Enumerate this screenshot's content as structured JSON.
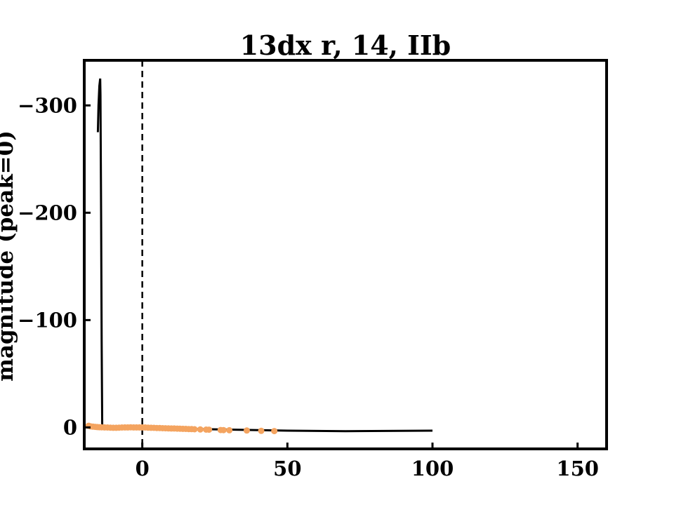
{
  "chart_data": {
    "type": "line",
    "title": "13dx r, 14, IIb",
    "xlabel": "",
    "ylabel": "magnitude (peak=0)",
    "xlim": [
      -20,
      160
    ],
    "ylim": [
      20,
      -342
    ],
    "y_inverted": true,
    "xticks": [
      0,
      50,
      100,
      150
    ],
    "yticks": [
      -300,
      -200,
      -100,
      0
    ],
    "xtick_labels": [
      "0",
      "50",
      "100",
      "150"
    ],
    "ytick_labels": [
      "−300",
      "−200",
      "−100",
      "0"
    ],
    "grid": false,
    "peak_marker_x": 0,
    "colors": {
      "model": "#000000",
      "observed": "#f4a460",
      "peak_marker": "#000000"
    },
    "series": [
      {
        "kind": "line",
        "x": [
          -15.3,
          -15.1,
          -14.8,
          -14.5,
          -14.4,
          -14.2,
          -14.0,
          -13.8,
          -12,
          -10,
          -5,
          0,
          10,
          20,
          30,
          50,
          70,
          100
        ],
        "y": [
          -275,
          -300,
          -318,
          -325,
          -310,
          -200,
          -80,
          -0.5,
          -0.3,
          0,
          0.2,
          0.5,
          1.0,
          1.5,
          2.0,
          3.0,
          3.5,
          3.0
        ]
      },
      {
        "kind": "scatter",
        "x": [
          -18.5,
          -17.8,
          -17,
          -16.2,
          -15.5,
          -14.8,
          -14,
          -13,
          -12,
          -11,
          -10,
          -9,
          -8,
          -7,
          -6,
          -5,
          -4,
          -3,
          -2,
          -1,
          0,
          1,
          2,
          3,
          4,
          5,
          6,
          7,
          8,
          9,
          10,
          11,
          12,
          13,
          14,
          15,
          16,
          17,
          18,
          20,
          22,
          23,
          27,
          28,
          30,
          36,
          41,
          45.5
        ],
        "y": [
          -1.5,
          -1.0,
          -0.7,
          -0.5,
          -0.3,
          -0.2,
          -0.1,
          0,
          0.1,
          0.2,
          0.3,
          0.3,
          0.2,
          0.1,
          0,
          0,
          -0.1,
          0,
          0,
          0,
          0,
          0.1,
          0.2,
          0.3,
          0.4,
          0.5,
          0.6,
          0.7,
          0.8,
          0.9,
          1.0,
          1.0,
          1.1,
          1.2,
          1.3,
          1.4,
          1.5,
          1.6,
          1.7,
          1.9,
          2.0,
          2.1,
          2.4,
          2.5,
          2.6,
          2.9,
          3.2,
          3.4
        ]
      }
    ]
  }
}
